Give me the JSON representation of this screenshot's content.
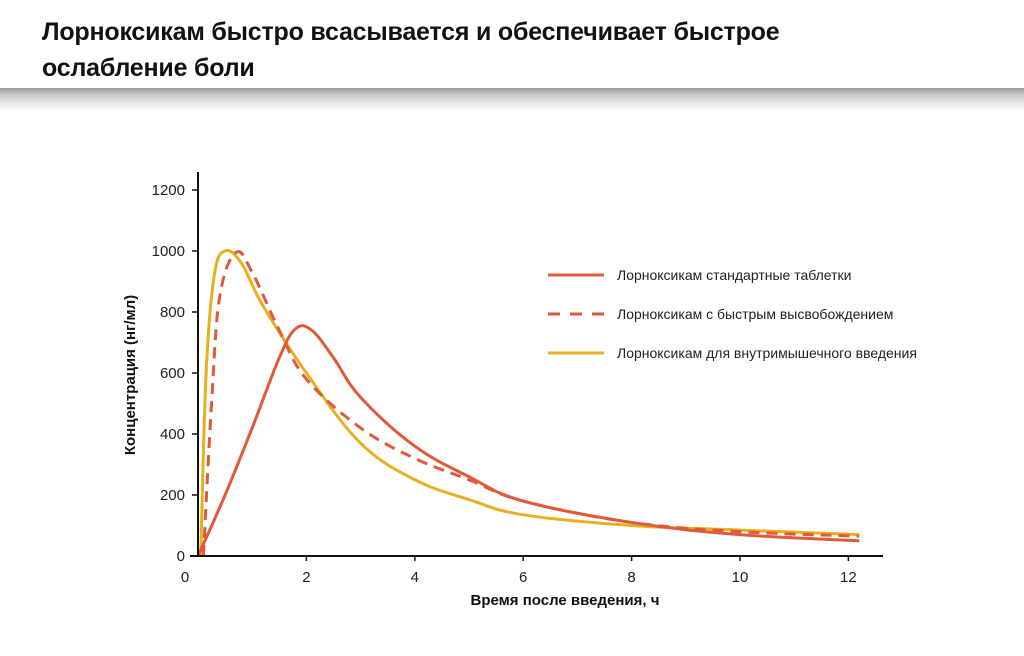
{
  "slide": {
    "title_line1": "Лорноксикам быстро всасывается и обеспечивает быстрое",
    "title_line2": "ослабление боли"
  },
  "chart_data": {
    "type": "line",
    "title": "",
    "xlabel": "Время после введения, ч",
    "ylabel": "Концентрация (нг/мл)",
    "xlim": [
      0,
      12.5
    ],
    "ylim": [
      0,
      1250
    ],
    "x_ticks": [
      0,
      2,
      4,
      6,
      8,
      10,
      12
    ],
    "y_ticks": [
      0,
      200,
      400,
      600,
      800,
      1000,
      1200
    ],
    "grid": false,
    "legend_position": "right-inside",
    "series": [
      {
        "name": "Лорноксикам стандартные таблетки",
        "style": "solid",
        "color": "#e05a3a",
        "x": [
          0,
          0.5,
          1,
          1.5,
          1.8,
          2.1,
          2.5,
          3,
          4,
          5,
          6,
          8,
          10,
          12.2
        ],
        "values": [
          0,
          200,
          420,
          650,
          745,
          740,
          650,
          520,
          360,
          260,
          180,
          110,
          70,
          50
        ]
      },
      {
        "name": "Лорноксикам с быстрым высвобождением",
        "style": "dashed",
        "color": "#e05a3a",
        "x": [
          0.1,
          0.25,
          0.4,
          0.7,
          1,
          1.5,
          2,
          3,
          4,
          5,
          6,
          8,
          10,
          12.2
        ],
        "values": [
          0,
          500,
          850,
          995,
          930,
          740,
          580,
          420,
          320,
          250,
          180,
          110,
          80,
          65
        ]
      },
      {
        "name": "Лорноксикам для внутримышечного введения",
        "style": "solid",
        "color": "#e8b020",
        "x": [
          0.05,
          0.15,
          0.3,
          0.5,
          0.8,
          1.2,
          2,
          3,
          4,
          5,
          6,
          8,
          10,
          12.2
        ],
        "values": [
          0,
          600,
          920,
          1000,
          960,
          820,
          600,
          370,
          250,
          185,
          135,
          100,
          85,
          70
        ]
      }
    ]
  }
}
